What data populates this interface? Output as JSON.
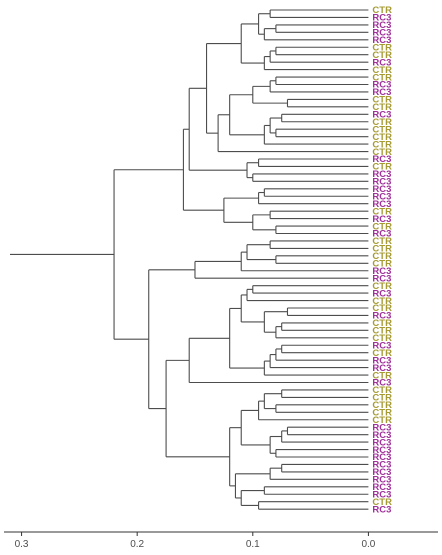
{
  "chart_data": {
    "type": "dendrogram",
    "title": "",
    "xlabel": "",
    "ylabel": "",
    "x_axis": {
      "reversed": true,
      "range": [
        0.31,
        -0.055
      ],
      "ticks": [
        0.3,
        0.2,
        0.1,
        0.0
      ],
      "tick_labels": [
        "0.3",
        "0.2",
        "0.1",
        "0.0"
      ]
    },
    "grid": false,
    "legend": "none",
    "colors": {
      "CTR": "#a69b33",
      "RC3": "#a0309a",
      "line": "#4d4d4d",
      "axis": "#333333",
      "tick_text": "#4d4d4d"
    },
    "leaves": [
      "CTR",
      "RC3",
      "RC3",
      "RC3",
      "RC3",
      "CTR",
      "CTR",
      "RC3",
      "CTR",
      "CTR",
      "RC3",
      "RC3",
      "CTR",
      "CTR",
      "RC3",
      "CTR",
      "CTR",
      "CTR",
      "CTR",
      "CTR",
      "RC3",
      "CTR",
      "RC3",
      "RC3",
      "RC3",
      "RC3",
      "RC3",
      "CTR",
      "RC3",
      "CTR",
      "RC3",
      "CTR",
      "CTR",
      "CTR",
      "CTR",
      "RC3",
      "RC3",
      "CTR",
      "RC3",
      "CTR",
      "CTR",
      "RC3",
      "CTR",
      "CTR",
      "CTR",
      "RC3",
      "CTR",
      "RC3",
      "RC3",
      "CTR",
      "RC3",
      "CTR",
      "CTR",
      "CTR",
      "CTR",
      "CTR",
      "RC3",
      "RC3",
      "RC3",
      "RC3",
      "RC3",
      "RC3",
      "RC3",
      "RC3",
      "RC3",
      "RC3",
      "CTR",
      "RC3"
    ],
    "merges": [
      {
        "a": "L0",
        "b": "L1",
        "h": 0.085
      },
      {
        "a": "L2",
        "b": "L3",
        "h": 0.08
      },
      {
        "a": "M1",
        "b": "L4",
        "h": 0.09
      },
      {
        "a": "M0",
        "b": "M2",
        "h": 0.095
      },
      {
        "a": "L5",
        "b": "L6",
        "h": 0.08
      },
      {
        "a": "M4",
        "b": "L7",
        "h": 0.085
      },
      {
        "a": "M5",
        "b": "L8",
        "h": 0.09
      },
      {
        "a": "M3",
        "b": "M6",
        "h": 0.11
      },
      {
        "a": "L9",
        "b": "L10",
        "h": 0.08
      },
      {
        "a": "M8",
        "b": "L11",
        "h": 0.085
      },
      {
        "a": "L12",
        "b": "L13",
        "h": 0.07
      },
      {
        "a": "M9",
        "b": "M10",
        "h": 0.1
      },
      {
        "a": "L14",
        "b": "L15",
        "h": 0.075
      },
      {
        "a": "L16",
        "b": "L17",
        "h": 0.08
      },
      {
        "a": "M12",
        "b": "M13",
        "h": 0.085
      },
      {
        "a": "M14",
        "b": "L18",
        "h": 0.09
      },
      {
        "a": "M11",
        "b": "M15",
        "h": 0.12
      },
      {
        "a": "M16",
        "b": "L19",
        "h": 0.13
      },
      {
        "a": "M7",
        "b": "M17",
        "h": 0.14
      },
      {
        "a": "L20",
        "b": "L21",
        "h": 0.095
      },
      {
        "a": "L22",
        "b": "L23",
        "h": 0.1
      },
      {
        "a": "M19",
        "b": "M20",
        "h": 0.105
      },
      {
        "a": "M18",
        "b": "M21",
        "h": 0.155
      },
      {
        "a": "L24",
        "b": "L25",
        "h": 0.09
      },
      {
        "a": "M23",
        "b": "L26",
        "h": 0.095
      },
      {
        "a": "L27",
        "b": "L28",
        "h": 0.085
      },
      {
        "a": "L29",
        "b": "L30",
        "h": 0.08
      },
      {
        "a": "M25",
        "b": "M26",
        "h": 0.1
      },
      {
        "a": "M24",
        "b": "M27",
        "h": 0.125
      },
      {
        "a": "M22",
        "b": "M28",
        "h": 0.16
      },
      {
        "a": "L31",
        "b": "L32",
        "h": 0.085
      },
      {
        "a": "L33",
        "b": "L34",
        "h": 0.08
      },
      {
        "a": "M30",
        "b": "M31",
        "h": 0.105
      },
      {
        "a": "M32",
        "b": "L35",
        "h": 0.11
      },
      {
        "a": "M33",
        "b": "L36",
        "h": 0.15
      },
      {
        "a": "L37",
        "b": "L38",
        "h": 0.1
      },
      {
        "a": "M35",
        "b": "L39",
        "h": 0.105
      },
      {
        "a": "L40",
        "b": "L41",
        "h": 0.07
      },
      {
        "a": "L42",
        "b": "L43",
        "h": 0.075
      },
      {
        "a": "M38",
        "b": "L44",
        "h": 0.08
      },
      {
        "a": "M37",
        "b": "M39",
        "h": 0.09
      },
      {
        "a": "M36",
        "b": "M40",
        "h": 0.11
      },
      {
        "a": "L45",
        "b": "L46",
        "h": 0.075
      },
      {
        "a": "M42",
        "b": "L47",
        "h": 0.08
      },
      {
        "a": "M43",
        "b": "L48",
        "h": 0.085
      },
      {
        "a": "M44",
        "b": "L49",
        "h": 0.09
      },
      {
        "a": "M41",
        "b": "M45",
        "h": 0.12
      },
      {
        "a": "M46",
        "b": "L50",
        "h": 0.155
      },
      {
        "a": "L51",
        "b": "L52",
        "h": 0.075
      },
      {
        "a": "L53",
        "b": "L54",
        "h": 0.08
      },
      {
        "a": "M48",
        "b": "M49",
        "h": 0.09
      },
      {
        "a": "M50",
        "b": "L55",
        "h": 0.095
      },
      {
        "a": "L56",
        "b": "L57",
        "h": 0.07
      },
      {
        "a": "M52",
        "b": "L58",
        "h": 0.075
      },
      {
        "a": "L59",
        "b": "L60",
        "h": 0.08
      },
      {
        "a": "M53",
        "b": "M54",
        "h": 0.085
      },
      {
        "a": "M51",
        "b": "M55",
        "h": 0.11
      },
      {
        "a": "L61",
        "b": "L62",
        "h": 0.075
      },
      {
        "a": "M57",
        "b": "L63",
        "h": 0.085
      },
      {
        "a": "L64",
        "b": "L65",
        "h": 0.09
      },
      {
        "a": "L66",
        "b": "L67",
        "h": 0.095
      },
      {
        "a": "M59",
        "b": "M60",
        "h": 0.11
      },
      {
        "a": "M58",
        "b": "M61",
        "h": 0.115
      },
      {
        "a": "M56",
        "b": "M62",
        "h": 0.12
      },
      {
        "a": "M47",
        "b": "M63",
        "h": 0.175
      },
      {
        "a": "M34",
        "b": "M64",
        "h": 0.19
      },
      {
        "a": "M29",
        "b": "M65",
        "h": 0.22
      },
      {
        "a": "M66",
        "b": "M67_dummy",
        "h": 0.0
      }
    ],
    "root": "M66",
    "root_height": 0.31
  }
}
